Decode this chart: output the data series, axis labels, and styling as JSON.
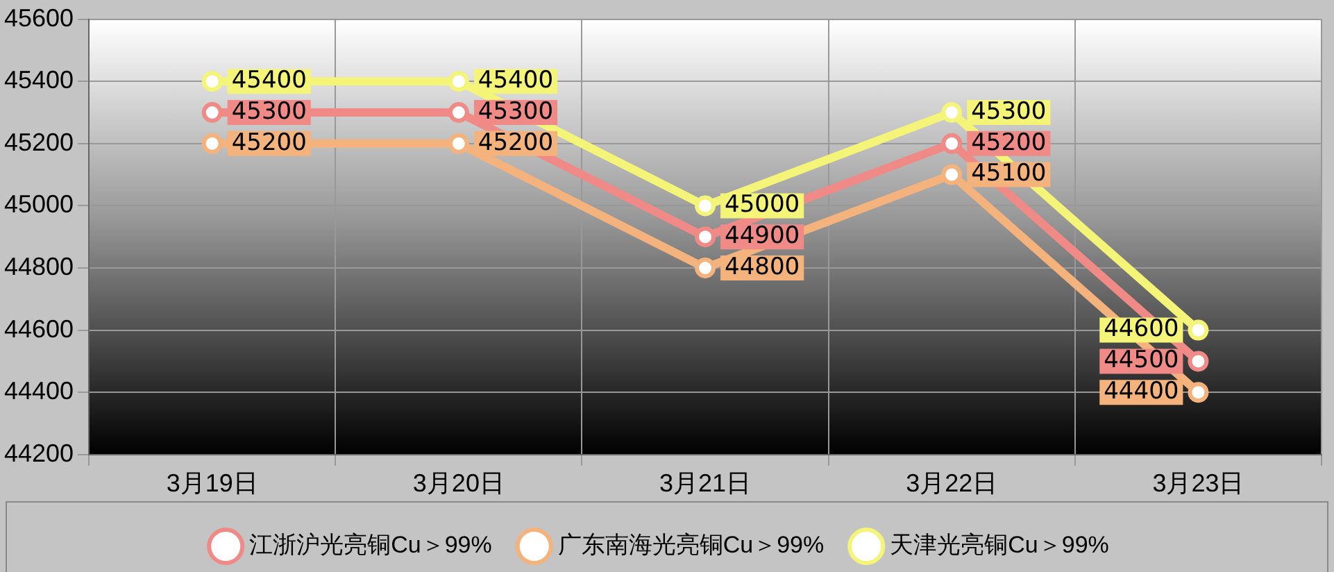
{
  "chart_data": {
    "type": "line",
    "categories": [
      "3月19日",
      "3月20日",
      "3月21日",
      "3月22日",
      "3月23日"
    ],
    "series": [
      {
        "name": "江浙沪光亮铜Cu＞99%",
        "color": "#f08a86",
        "values": [
          45300,
          45300,
          44900,
          45200,
          44500
        ]
      },
      {
        "name": "广东南海光亮铜Cu＞99%",
        "color": "#f4b27c",
        "values": [
          45200,
          45200,
          44800,
          45100,
          44400
        ]
      },
      {
        "name": "天津光亮铜Cu＞99%",
        "color": "#f4f478",
        "values": [
          45400,
          45400,
          45000,
          45300,
          44600
        ]
      }
    ],
    "ylim": [
      44200,
      45600
    ],
    "yticks": [
      44200,
      44400,
      44600,
      44800,
      45000,
      45200,
      45400,
      45600
    ],
    "grid": true,
    "legend": "bottom",
    "marker": "circle",
    "line_style": "solid",
    "data_labels": true
  }
}
